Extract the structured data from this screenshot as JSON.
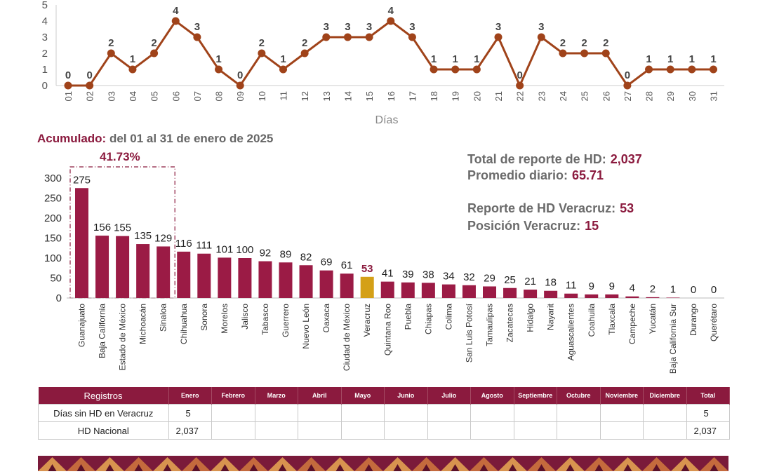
{
  "chart_data": [
    {
      "type": "line",
      "xlabel": "Días",
      "x": [
        "01",
        "02",
        "03",
        "04",
        "05",
        "06",
        "07",
        "08",
        "09",
        "10",
        "11",
        "12",
        "13",
        "14",
        "15",
        "16",
        "17",
        "18",
        "19",
        "20",
        "21",
        "22",
        "23",
        "24",
        "25",
        "26",
        "27",
        "28",
        "29",
        "30",
        "31"
      ],
      "values": [
        0,
        0,
        2,
        1,
        2,
        4,
        3,
        1,
        0,
        2,
        1,
        2,
        3,
        3,
        3,
        4,
        3,
        1,
        1,
        1,
        3,
        0,
        3,
        2,
        2,
        2,
        0,
        1,
        1,
        1,
        1
      ],
      "y_ticks": [
        0,
        1,
        2,
        3,
        4,
        5
      ],
      "ylim": [
        0,
        5
      ],
      "color": "#a0431a",
      "grid": false
    },
    {
      "type": "bar",
      "categories": [
        "Guanajuato",
        "Baja California",
        "Estado de México",
        "Michoacán",
        "Sinaloa",
        "Chihuahua",
        "Sonora",
        "Morelos",
        "Jalisco",
        "Tabasco",
        "Guerrero",
        "Nuevo León",
        "Oaxaca",
        "Ciudad de México",
        "Veracruz",
        "Quintana Roo",
        "Puebla",
        "Chiapas",
        "Colima",
        "San Luis Potosí",
        "Tamaulipas",
        "Zacatecas",
        "Hidalgo",
        "Nayarit",
        "Aguascalientes",
        "Coahuila",
        "Tlaxcala",
        "Campeche",
        "Yucatán",
        "Baja California Sur",
        "Durango",
        "Querétaro"
      ],
      "values": [
        275,
        156,
        155,
        135,
        129,
        116,
        111,
        101,
        100,
        92,
        89,
        82,
        69,
        61,
        53,
        41,
        39,
        38,
        34,
        32,
        29,
        25,
        21,
        18,
        11,
        9,
        9,
        4,
        2,
        1,
        0,
        0
      ],
      "y_ticks": [
        0,
        50,
        100,
        150,
        200,
        250,
        300
      ],
      "ylim": [
        0,
        300
      ],
      "highlight_category": "Veracruz",
      "bar_color": "#9b1b45",
      "highlight_color": "#d4a017",
      "top_group_count": 5,
      "top_group_label": "41.73%",
      "grid": false
    }
  ],
  "accum": {
    "lead": "Acumulado:",
    "rest": " del 01 al 31 de enero de 2025"
  },
  "stats": {
    "total_label": "Total de reporte de HD:",
    "total_value": "2,037",
    "avg_label": "Promedio diario:",
    "avg_value": "65.71",
    "ver_label": "Reporte de HD Veracruz:",
    "ver_value": "53",
    "pos_label": "Posición Veracruz:",
    "pos_value": "15"
  },
  "table": {
    "header": [
      "Registros",
      "Enero",
      "Febrero",
      "Marzo",
      "Abril",
      "Mayo",
      "Junio",
      "Julio",
      "Agosto",
      "Septiembre",
      "Octubre",
      "Noviembre",
      "Diciembre",
      "Total"
    ],
    "rows": [
      {
        "label": "Días sin HD en Veracruz",
        "enero": "5",
        "total": "5"
      },
      {
        "label": "HD Nacional",
        "enero": "2,037",
        "total": "2,037"
      }
    ]
  },
  "colors": {
    "maroon": "#8b1a3e",
    "brown_line": "#a0431a",
    "gold": "#d4a017"
  }
}
